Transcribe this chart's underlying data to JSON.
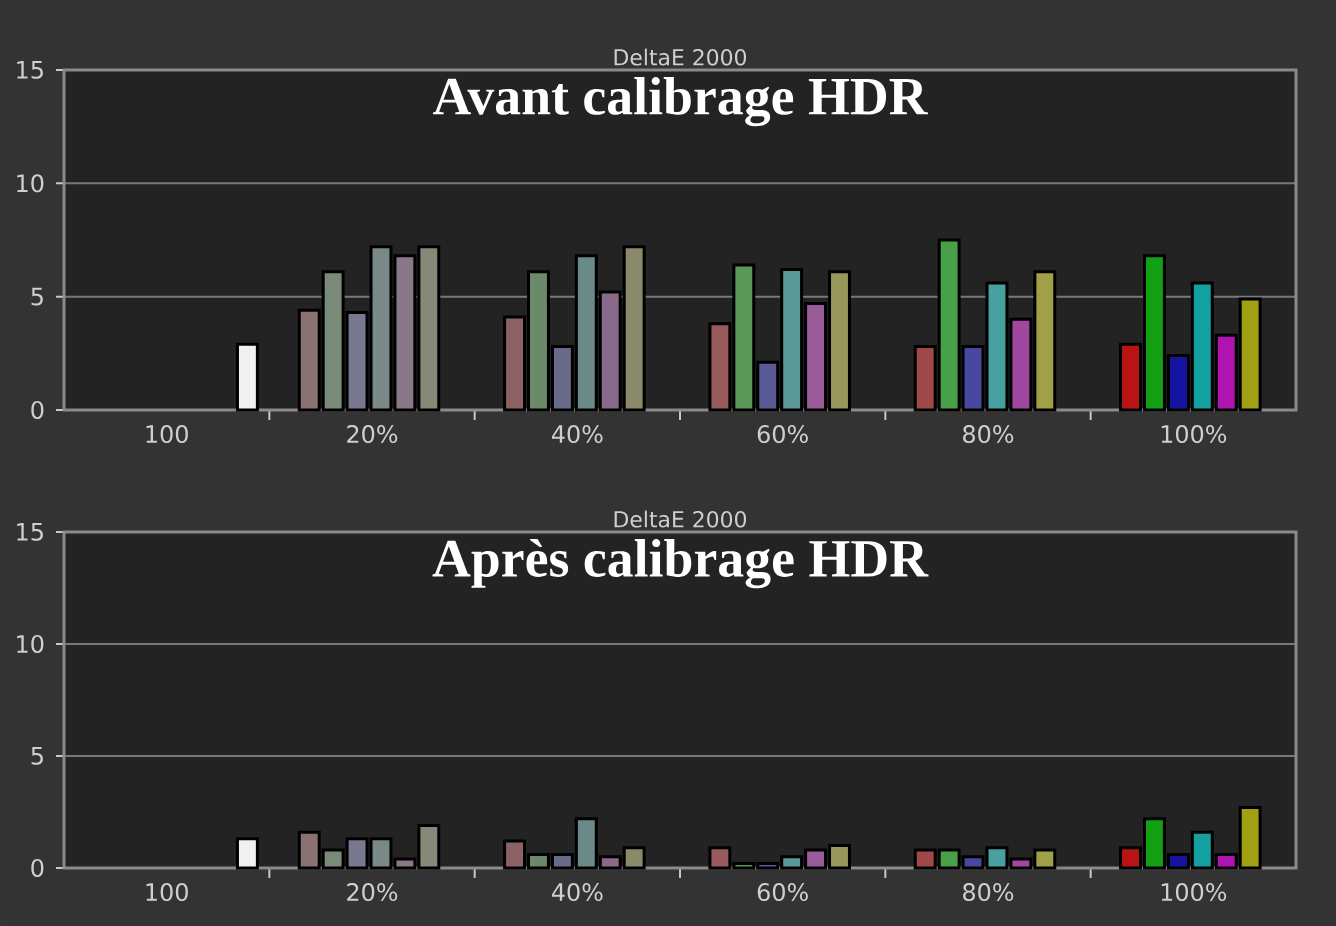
{
  "chart_data": [
    {
      "type": "bar",
      "title": "DeltaE 2000",
      "subtitle": "Avant calibrage HDR",
      "categories": [
        "100",
        "20%",
        "40%",
        "60%",
        "80%",
        "100%"
      ],
      "ylim": [
        0,
        15
      ],
      "yticks": [
        0,
        5,
        10,
        15
      ],
      "grid": "y",
      "series": [
        {
          "values": [
            null,
            4.4,
            4.1,
            3.8,
            2.8,
            2.9
          ],
          "colors": [
            null,
            "#8a7272",
            "#8c6262",
            "#985a5a",
            "#a04848",
            "#b81414"
          ]
        },
        {
          "values": [
            null,
            6.1,
            6.1,
            6.4,
            7.5,
            6.8
          ],
          "colors": [
            null,
            "#7a8a78",
            "#6a8a6a",
            "#5a985a",
            "#48a048",
            "#14a014"
          ]
        },
        {
          "values": [
            null,
            4.3,
            2.8,
            2.1,
            2.8,
            2.4
          ],
          "colors": [
            null,
            "#787890",
            "#6a6a8a",
            "#5a5a98",
            "#4848a0",
            "#1414a0"
          ]
        },
        {
          "values": [
            null,
            7.2,
            6.8,
            6.2,
            5.6,
            5.6
          ],
          "colors": [
            null,
            "#7a8888",
            "#6a8a8a",
            "#5a9898",
            "#48a0a0",
            "#14a0a0"
          ]
        },
        {
          "values": [
            null,
            6.8,
            5.2,
            4.7,
            4.0,
            3.3
          ],
          "colors": [
            null,
            "#887888",
            "#8a6a8a",
            "#985a98",
            "#a048a0",
            "#b014b0"
          ]
        },
        {
          "values": [
            null,
            7.2,
            7.2,
            6.1,
            6.1,
            4.9
          ],
          "colors": [
            null,
            "#888878",
            "#8a8a6a",
            "#98985a",
            "#a0a048",
            "#a0a014"
          ]
        },
        {
          "values": [
            2.9,
            null,
            null,
            null,
            null,
            null
          ],
          "colors": [
            "#f0f0f0",
            null,
            null,
            null,
            null,
            null
          ]
        }
      ]
    },
    {
      "type": "bar",
      "title": "DeltaE 2000",
      "subtitle": "Après calibrage HDR",
      "categories": [
        "100",
        "20%",
        "40%",
        "60%",
        "80%",
        "100%"
      ],
      "ylim": [
        0,
        15
      ],
      "yticks": [
        0,
        5,
        10,
        15
      ],
      "grid": "y",
      "series": [
        {
          "values": [
            null,
            1.6,
            1.2,
            0.9,
            0.8,
            0.9
          ],
          "colors": [
            null,
            "#8a7272",
            "#8c6262",
            "#985a5a",
            "#a04848",
            "#b81414"
          ]
        },
        {
          "values": [
            null,
            0.8,
            0.6,
            0.2,
            0.8,
            2.2
          ],
          "colors": [
            null,
            "#7a8a78",
            "#6a8a6a",
            "#5a985a",
            "#48a048",
            "#14a014"
          ]
        },
        {
          "values": [
            null,
            1.3,
            0.6,
            0.2,
            0.5,
            0.6
          ],
          "colors": [
            null,
            "#787890",
            "#6a6a8a",
            "#5a5a98",
            "#4848a0",
            "#1414a0"
          ]
        },
        {
          "values": [
            null,
            1.3,
            2.2,
            0.5,
            0.9,
            1.6
          ],
          "colors": [
            null,
            "#7a8888",
            "#6a8a8a",
            "#5a9898",
            "#48a0a0",
            "#14a0a0"
          ]
        },
        {
          "values": [
            null,
            0.4,
            0.5,
            0.8,
            0.4,
            0.6
          ],
          "colors": [
            null,
            "#887888",
            "#8a6a8a",
            "#985a98",
            "#a048a0",
            "#b014b0"
          ]
        },
        {
          "values": [
            null,
            1.9,
            0.9,
            1.0,
            0.8,
            2.7
          ],
          "colors": [
            null,
            "#888878",
            "#8a8a6a",
            "#98985a",
            "#a0a048",
            "#a0a014"
          ]
        },
        {
          "values": [
            1.3,
            null,
            null,
            null,
            null,
            null
          ],
          "colors": [
            "#f0f0f0",
            null,
            null,
            null,
            null,
            null
          ]
        }
      ]
    }
  ]
}
